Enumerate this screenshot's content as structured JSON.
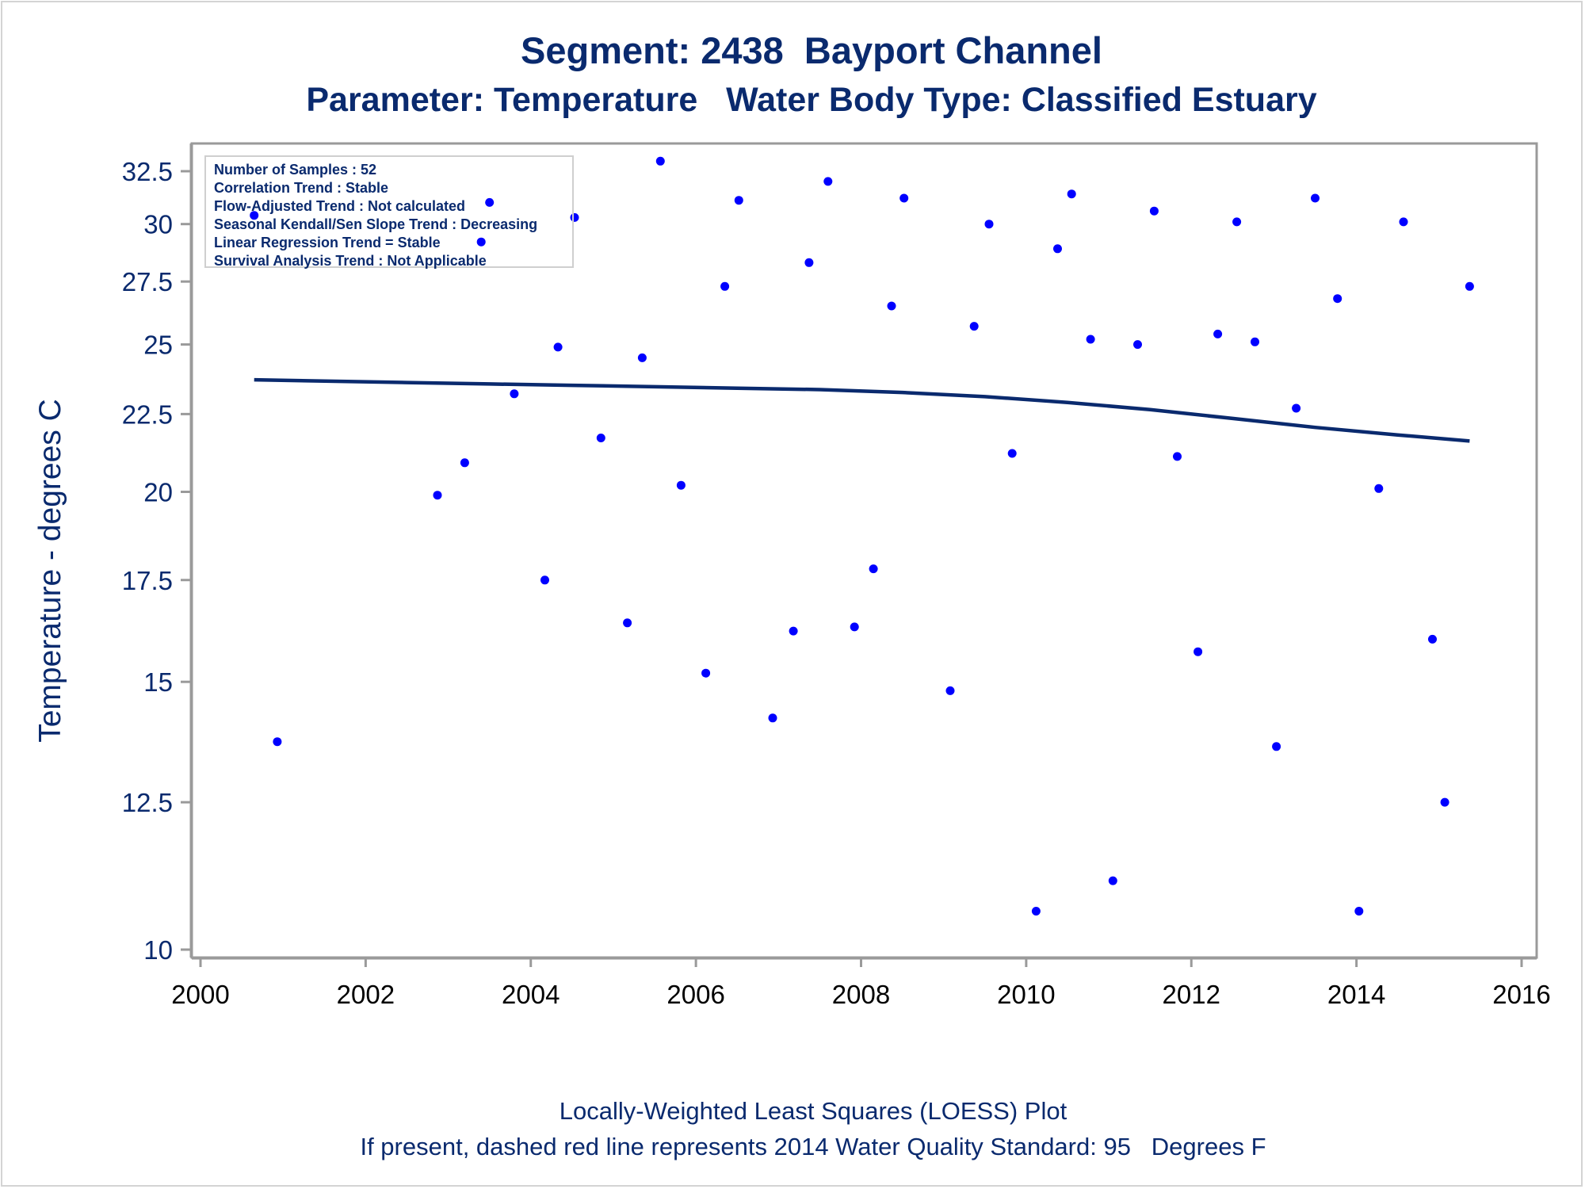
{
  "title": "Segment: 2438  Bayport Channel",
  "subtitle": "Parameter: Temperature   Water Body Type: Classified Estuary",
  "footer": {
    "line1": "Locally-Weighted Least Squares (LOESS) Plot",
    "line2": "If present, dashed red line represents 2014 Water Quality Standard: 95   Degrees F"
  },
  "stats": [
    "Number of Samples : 52",
    "Correlation Trend : Stable",
    "Flow-Adjusted Trend : Not calculated",
    "Seasonal Kendall/Sen Slope Trend : Decreasing",
    "Linear Regression Trend = Stable",
    "Survival Analysis Trend : Not Applicable"
  ],
  "colors": {
    "text": "#0a2a6e",
    "points": "#0000ff",
    "loess_line": "#0a2a6e",
    "axis": "#9a9a9a"
  },
  "chart_data": {
    "type": "scatter",
    "title": "Segment: 2438  Bayport Channel",
    "subtitle": "Parameter: Temperature   Water Body Type: Classified Estuary",
    "xlabel": "",
    "ylabel": "Temperature - degrees C",
    "xlim": [
      2000,
      2016
    ],
    "ylim": [
      10,
      32.5
    ],
    "y_scale": "log",
    "x_ticks": [
      2000,
      2002,
      2004,
      2006,
      2008,
      2010,
      2012,
      2014,
      2016
    ],
    "y_ticks": [
      10,
      12.5,
      15,
      17.5,
      20,
      22.5,
      25,
      27.5,
      30,
      32.5
    ],
    "y_tick_labels": [
      "10",
      "12.5",
      "15",
      "17.5",
      "20",
      "22.5",
      "25",
      "27.5",
      "30",
      "32.5"
    ],
    "grid": false,
    "legend": "none",
    "series": [
      {
        "type": "scatter",
        "points": [
          [
            2000.65,
            30.4
          ],
          [
            2000.93,
            13.7
          ],
          [
            2002.87,
            19.9
          ],
          [
            2003.2,
            20.9
          ],
          [
            2003.4,
            29.2
          ],
          [
            2003.5,
            31.0
          ],
          [
            2003.8,
            23.2
          ],
          [
            2004.17,
            17.5
          ],
          [
            2004.33,
            24.9
          ],
          [
            2004.53,
            30.3
          ],
          [
            2004.85,
            21.7
          ],
          [
            2005.17,
            16.4
          ],
          [
            2005.35,
            24.5
          ],
          [
            2005.57,
            33.0
          ],
          [
            2005.82,
            20.2
          ],
          [
            2006.12,
            15.2
          ],
          [
            2006.35,
            27.3
          ],
          [
            2006.52,
            31.1
          ],
          [
            2006.93,
            14.2
          ],
          [
            2007.18,
            16.2
          ],
          [
            2007.37,
            28.3
          ],
          [
            2007.6,
            32.0
          ],
          [
            2007.92,
            16.3
          ],
          [
            2008.15,
            17.8
          ],
          [
            2008.37,
            26.5
          ],
          [
            2008.52,
            31.2
          ],
          [
            2009.08,
            14.8
          ],
          [
            2009.37,
            25.7
          ],
          [
            2009.55,
            30.0
          ],
          [
            2009.83,
            21.2
          ],
          [
            2010.12,
            10.6
          ],
          [
            2010.38,
            28.9
          ],
          [
            2010.55,
            31.4
          ],
          [
            2010.78,
            25.2
          ],
          [
            2011.05,
            11.1
          ],
          [
            2011.35,
            25.0
          ],
          [
            2011.55,
            30.6
          ],
          [
            2011.83,
            21.1
          ],
          [
            2012.08,
            15.7
          ],
          [
            2012.32,
            25.4
          ],
          [
            2012.55,
            30.1
          ],
          [
            2012.77,
            25.1
          ],
          [
            2013.03,
            13.6
          ],
          [
            2013.27,
            22.7
          ],
          [
            2013.5,
            31.2
          ],
          [
            2013.77,
            26.8
          ],
          [
            2014.03,
            10.6
          ],
          [
            2014.27,
            20.1
          ],
          [
            2014.57,
            30.1
          ],
          [
            2014.92,
            16.0
          ],
          [
            2015.07,
            12.5
          ],
          [
            2015.37,
            27.3
          ]
        ]
      },
      {
        "type": "line",
        "name": "LOESS",
        "points": [
          [
            2000.65,
            23.7
          ],
          [
            2001.5,
            23.65
          ],
          [
            2002.5,
            23.6
          ],
          [
            2003.5,
            23.55
          ],
          [
            2004.5,
            23.5
          ],
          [
            2005.5,
            23.45
          ],
          [
            2006.5,
            23.4
          ],
          [
            2007.5,
            23.35
          ],
          [
            2008.5,
            23.25
          ],
          [
            2009.5,
            23.1
          ],
          [
            2010.5,
            22.9
          ],
          [
            2011.5,
            22.65
          ],
          [
            2012.5,
            22.35
          ],
          [
            2013.5,
            22.05
          ],
          [
            2014.5,
            21.8
          ],
          [
            2015.37,
            21.6
          ]
        ]
      }
    ]
  }
}
